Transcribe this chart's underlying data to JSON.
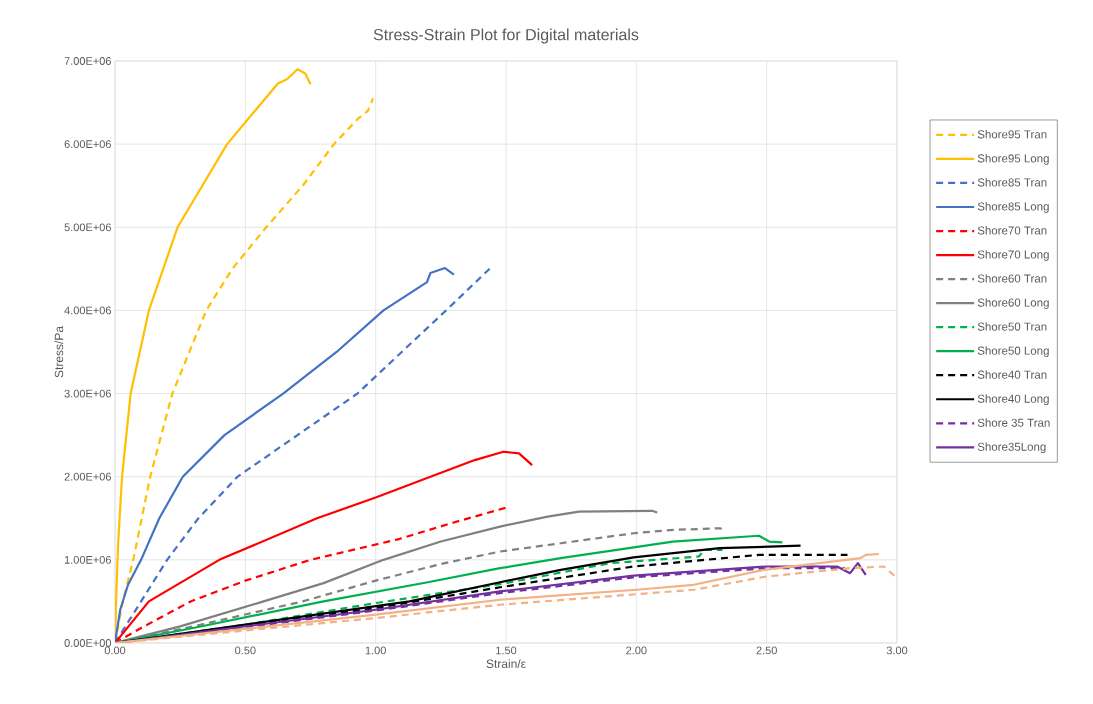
{
  "chart_data": {
    "type": "line",
    "title": "Stress-Strain Plot for Digital materials",
    "xlabel": "Strain/ε",
    "ylabel": "Stress/Pa",
    "xlim": [
      0,
      3
    ],
    "ylim": [
      0,
      7000000
    ],
    "xticks": [
      {
        "value": 0,
        "label": "0.00"
      },
      {
        "value": 0.5,
        "label": "0.50"
      },
      {
        "value": 1,
        "label": "1.00"
      },
      {
        "value": 1.5,
        "label": "1.50"
      },
      {
        "value": 2,
        "label": "2.00"
      },
      {
        "value": 2.5,
        "label": "2.50"
      },
      {
        "value": 3,
        "label": "3.00"
      }
    ],
    "yticks": [
      {
        "value": 0,
        "label": "0.00E+00"
      },
      {
        "value": 1000000,
        "label": "1.00E+06"
      },
      {
        "value": 2000000,
        "label": "2.00E+06"
      },
      {
        "value": 3000000,
        "label": "3.00E+06"
      },
      {
        "value": 4000000,
        "label": "4.00E+06"
      },
      {
        "value": 5000000,
        "label": "5.00E+06"
      },
      {
        "value": 6000000,
        "label": "6.00E+06"
      },
      {
        "value": 7000000,
        "label": "7.00E+06"
      }
    ],
    "grid": true,
    "legend": "right",
    "series": [
      {
        "name": "Shore95 Tran",
        "color": "#ffc000",
        "line_style": "dashed",
        "x": [
          0,
          0.03,
          0.07,
          0.135,
          0.22,
          0.35,
          0.45,
          0.58,
          0.72,
          0.84,
          0.93,
          0.97,
          0.99
        ],
        "values": [
          0,
          500000,
          1000000,
          2000000,
          3000000,
          4000000,
          4500000,
          5000000,
          5500000,
          6000000,
          6300000,
          6400000,
          6550000
        ]
      },
      {
        "name": "Shore95 Long",
        "color": "#ffc000",
        "line_style": "solid",
        "x": [
          0,
          0.005,
          0.012,
          0.027,
          0.06,
          0.13,
          0.24,
          0.43,
          0.55,
          0.625,
          0.66,
          0.7,
          0.73,
          0.75
        ],
        "values": [
          0,
          600000,
          1200000,
          2000000,
          3000000,
          4000000,
          5000000,
          6000000,
          6450000,
          6730000,
          6780000,
          6900000,
          6850000,
          6720000
        ]
      },
      {
        "name": "Shore85 Tran",
        "color": "#4472c4",
        "line_style": "dashed",
        "x": [
          0,
          0.05,
          0.1,
          0.2,
          0.32,
          0.47,
          0.7,
          0.93,
          1.1,
          1.27,
          1.44
        ],
        "values": [
          0,
          250000,
          500000,
          1000000,
          1500000,
          2000000,
          2500000,
          3000000,
          3500000,
          4000000,
          4510000
        ]
      },
      {
        "name": "Shore85 Long",
        "color": "#4472c4",
        "line_style": "solid",
        "x": [
          0,
          0.02,
          0.05,
          0.1,
          0.17,
          0.26,
          0.42,
          0.645,
          0.85,
          1.03,
          1.197,
          1.21,
          1.266,
          1.3
        ],
        "values": [
          0,
          400000,
          700000,
          1000000,
          1500000,
          2000000,
          2500000,
          3000000,
          3500000,
          4000000,
          4340000,
          4450000,
          4510000,
          4430000
        ]
      },
      {
        "name": "Shore70 Tran",
        "color": "#ff0000",
        "line_style": "dashed",
        "x": [
          0,
          0.1,
          0.29,
          0.5,
          0.75,
          1.09,
          1.3,
          1.515
        ],
        "values": [
          0,
          180000,
          500000,
          750000,
          1000000,
          1250000,
          1450000,
          1640000
        ]
      },
      {
        "name": "Shore70 Long",
        "color": "#ff0000",
        "line_style": "solid",
        "x": [
          0,
          0.13,
          0.4,
          0.775,
          1.0,
          1.21,
          1.38,
          1.49,
          1.55,
          1.6
        ],
        "values": [
          0,
          500000,
          1000000,
          1500000,
          1750000,
          2000000,
          2200000,
          2300000,
          2280000,
          2140000
        ]
      },
      {
        "name": "Shore60 Tran",
        "color": "#808080",
        "line_style": "dashed",
        "x": [
          0,
          0.3,
          0.72,
          1.0,
          1.25,
          1.477,
          1.71,
          1.99,
          2.14,
          2.32,
          2.34
        ],
        "values": [
          0,
          200000,
          500000,
          750000,
          950000,
          1100000,
          1200000,
          1320000,
          1360000,
          1380000,
          1360000
        ]
      },
      {
        "name": "Shore60 Long",
        "color": "#808080",
        "line_style": "solid",
        "x": [
          0,
          0.25,
          0.57,
          0.8,
          1.03,
          1.25,
          1.477,
          1.66,
          1.78,
          2.06,
          2.08
        ],
        "values": [
          0,
          200000,
          500000,
          720000,
          1000000,
          1220000,
          1400000,
          1520000,
          1580000,
          1590000,
          1570000
        ]
      },
      {
        "name": "Shore50 Tran",
        "color": "#00b050",
        "line_style": "dashed",
        "x": [
          0,
          0.5,
          1.0,
          1.5,
          1.9,
          2.24,
          2.26,
          2.33
        ],
        "values": [
          0,
          220000,
          480000,
          720000,
          960000,
          1040000,
          1120000,
          1120000
        ]
      },
      {
        "name": "Shore50 Long",
        "color": "#00b050",
        "line_style": "solid",
        "x": [
          0,
          0.3,
          0.8,
          1.2,
          1.477,
          1.71,
          2.14,
          2.47,
          2.51,
          2.56
        ],
        "values": [
          0,
          180000,
          500000,
          730000,
          900000,
          1020000,
          1220000,
          1290000,
          1220000,
          1210000
        ]
      },
      {
        "name": "Shore40 Tran",
        "color": "#000000",
        "line_style": "dashed",
        "x": [
          0,
          0.5,
          1.0,
          1.477,
          1.99,
          2.47,
          2.81
        ],
        "values": [
          0,
          200000,
          420000,
          670000,
          920000,
          1060000,
          1060000
        ]
      },
      {
        "name": "Shore40 Long",
        "color": "#000000",
        "line_style": "solid",
        "x": [
          0,
          0.5,
          1.13,
          1.477,
          1.71,
          1.99,
          2.32,
          2.63
        ],
        "values": [
          0,
          220000,
          500000,
          730000,
          880000,
          1030000,
          1140000,
          1170000
        ]
      },
      {
        "name": "Shore 35 Tran",
        "color": "#7030a0",
        "line_style": "dashed",
        "x": [
          0,
          0.5,
          1.0,
          1.477,
          1.99,
          2.5,
          2.8
        ],
        "values": [
          0,
          190000,
          390000,
          600000,
          790000,
          900000,
          900000
        ]
      },
      {
        "name": "Shore35Long",
        "color": "#7030a0",
        "line_style": "solid",
        "x": [
          0,
          0.5,
          1.0,
          1.477,
          1.99,
          2.5,
          2.77,
          2.82,
          2.85,
          2.88
        ],
        "values": [
          0,
          200000,
          400000,
          620000,
          810000,
          920000,
          920000,
          840000,
          960000,
          820000
        ]
      },
      {
        "color": "#f4b183",
        "line_style": "dashed",
        "x": [
          0,
          0.5,
          1.0,
          1.477,
          2.22,
          2.5,
          2.82,
          2.95,
          3.0
        ],
        "values": [
          0,
          150000,
          300000,
          460000,
          640000,
          800000,
          900000,
          920000,
          780000
        ]
      },
      {
        "color": "#f4b183",
        "line_style": "solid",
        "x": [
          0,
          0.5,
          1.0,
          1.477,
          2.0,
          2.22,
          2.49,
          2.86,
          2.88,
          2.93
        ],
        "values": [
          0,
          170000,
          340000,
          520000,
          640000,
          700000,
          880000,
          1020000,
          1060000,
          1070000
        ]
      }
    ]
  }
}
